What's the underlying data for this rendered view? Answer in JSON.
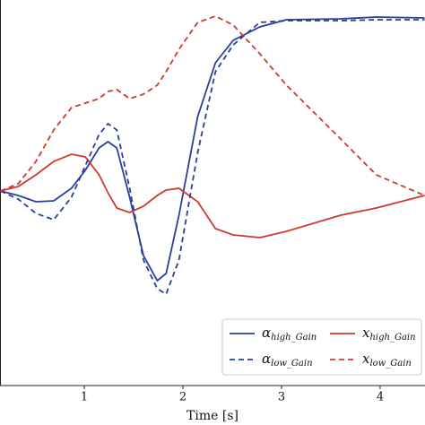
{
  "chart_data": {
    "type": "line",
    "xlabel": "Time [s]",
    "x": [
      0.15,
      0.33,
      0.51,
      0.69,
      0.87,
      1.01,
      1.15,
      1.24,
      1.33,
      1.46,
      1.6,
      1.74,
      1.83,
      1.96,
      2.15,
      2.33,
      2.51,
      2.78,
      3.05,
      3.6,
      3.96,
      4.45
    ],
    "xlim": [
      0.145,
      4.455
    ],
    "xticks": [
      1,
      2,
      3,
      4
    ],
    "ylim": [
      -2.17,
      2.13
    ],
    "legend": "lower right",
    "series": [
      {
        "name": "αhigh_Gain",
        "color": "#2b3f99",
        "dash": false,
        "values": [
          0,
          -0.05,
          -0.12,
          -0.11,
          0.03,
          0.23,
          0.48,
          0.55,
          0.48,
          -0.07,
          -0.72,
          -1.0,
          -0.92,
          -0.27,
          0.83,
          1.43,
          1.68,
          1.83,
          1.91,
          1.92,
          1.94,
          1.93
        ]
      },
      {
        "name": "xhigh_Gain",
        "color": "#d0392f",
        "dash": false,
        "values": [
          0,
          0.05,
          0.18,
          0.33,
          0.41,
          0.38,
          0.18,
          -0.02,
          -0.19,
          -0.24,
          -0.17,
          -0.05,
          0.01,
          0.03,
          -0.12,
          -0.42,
          -0.49,
          -0.52,
          -0.45,
          -0.27,
          -0.19,
          -0.05
        ]
      },
      {
        "name": "αlow_Gain",
        "color": "#2b3f99",
        "dash": true,
        "values": [
          0,
          -0.09,
          -0.25,
          -0.32,
          -0.07,
          0.28,
          0.63,
          0.75,
          0.68,
          0.03,
          -0.77,
          -1.09,
          -1.15,
          -0.77,
          0.43,
          1.33,
          1.63,
          1.88,
          1.9,
          1.9,
          1.91,
          1.91
        ]
      },
      {
        "name": "xlow_Gain",
        "color": "#d0392f",
        "dash": true,
        "values": [
          0,
          0.08,
          0.33,
          0.68,
          0.93,
          0.98,
          1.03,
          1.11,
          1.13,
          1.03,
          1.08,
          1.18,
          1.33,
          1.58,
          1.88,
          1.95,
          1.85,
          1.53,
          1.18,
          0.58,
          0.18,
          -0.05
        ]
      }
    ]
  }
}
